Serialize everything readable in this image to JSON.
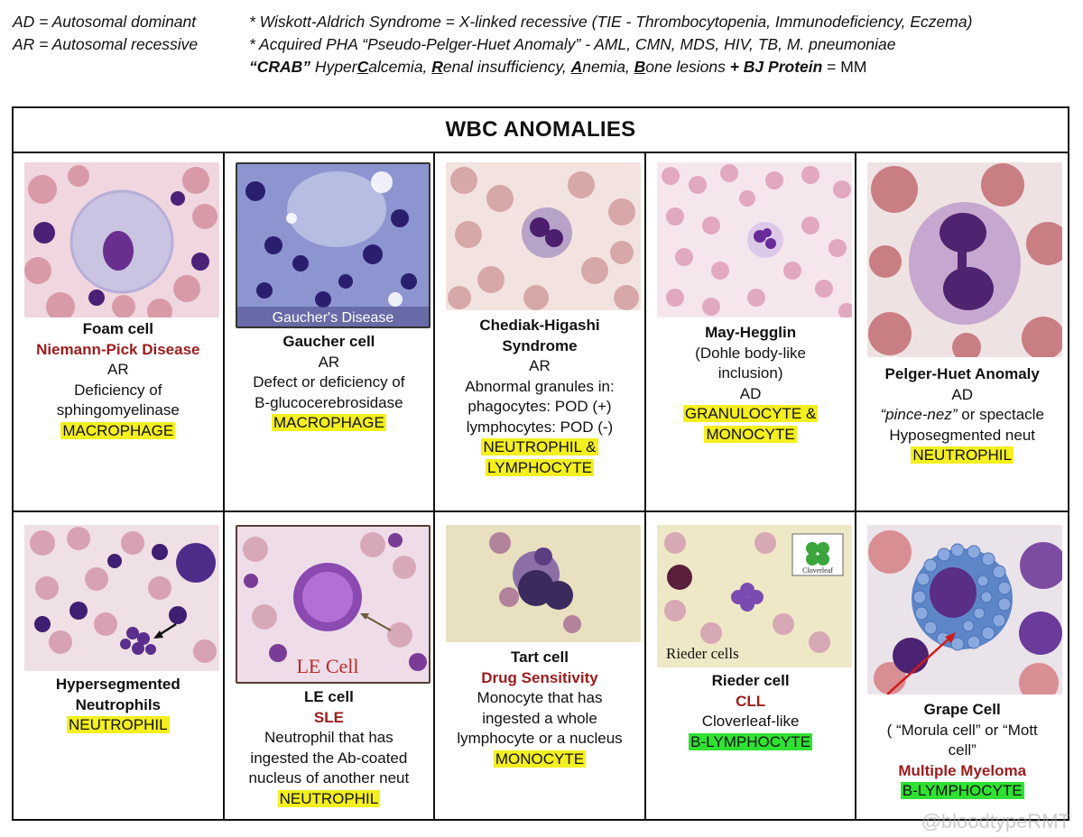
{
  "header": {
    "ad_def": "AD = Autosomal dominant",
    "ar_def": "AR = Autosomal recessive",
    "note1": "* Wiskott-Aldrich Syndrome = X-linked recessive (TIE - Thrombocytopenia, Immunodeficiency, Eczema)",
    "note2": "* Acquired PHA “Pseudo-Pelger-Huet Anomaly” - AML, CMN, MDS, HIV, TB, M. pneumoniae",
    "crab": {
      "label": "“CRAB”",
      "hyper": " Hyper",
      "c": "C",
      "alcemia": "alcemia, ",
      "r": "R",
      "enal": "enal insufficiency, ",
      "a": "A",
      "nemia": "nemia, ",
      "b": "B",
      "one": "one lesions ",
      "bj": "+ BJ Protein",
      "eq": " = MM"
    }
  },
  "title": "WBC ANOMALIES",
  "cells": {
    "foam": {
      "name": "Foam cell",
      "disease": "Niemann-Pick Disease",
      "inherit": "AR",
      "desc1": "Deficiency of",
      "desc2": "sphingomyelinase",
      "type": "MACROPHAGE"
    },
    "gaucher": {
      "caption": "Gaucher's Disease",
      "name": "Gaucher cell",
      "inherit": "AR",
      "desc1": "Defect or deficiency of",
      "desc2": "B-glucocerebrosidase",
      "type": "MACROPHAGE"
    },
    "chediak": {
      "name1": "Chediak-Higashi",
      "name2": "Syndrome",
      "inherit": "AR",
      "desc1": "Abnormal granules in:",
      "desc2": "phagocytes: POD (+)",
      "desc3": "lymphocytes: POD (-)",
      "type1": "NEUTROPHIL &",
      "type2": "LYMPHOCYTE"
    },
    "may": {
      "name": "May-Hegglin",
      "desc1": "(Dohle body-like",
      "desc2": "inclusion)",
      "inherit": "AD",
      "type1": "GRANULOCYTE &",
      "type2": "MONOCYTE"
    },
    "pelger": {
      "name": "Pelger-Huet Anomaly",
      "inherit": "AD",
      "desc1a": "“pince-nez”",
      "desc1b": " or spectacle",
      "desc2": "Hyposegmented neut",
      "type": "NEUTROPHIL"
    },
    "hyperseg": {
      "name1": "Hypersegmented",
      "name2": "Neutrophils",
      "type": "NEUTROPHIL"
    },
    "le": {
      "caption": "LE Cell",
      "name": "LE cell",
      "disease": "SLE",
      "desc1": "Neutrophil that has",
      "desc2": "ingested the Ab-coated",
      "desc3": "nucleus of another neut",
      "type": "NEUTROPHIL"
    },
    "tart": {
      "name": "Tart cell",
      "disease": "Drug Sensitivity",
      "desc1": "Monocyte that has",
      "desc2": "ingested a whole",
      "desc3": "lymphocyte or a nucleus",
      "type": "MONOCYTE"
    },
    "rieder": {
      "inset": "Cloverleaf",
      "caption": "Rieder cells",
      "name": "Rieder cell",
      "disease": "CLL",
      "desc1": "Cloverleaf-like",
      "type": "B-LYMPHOCYTE"
    },
    "grape": {
      "name": "Grape Cell",
      "desc1": "( “Morula cell” or “Mott",
      "desc2": "cell”",
      "disease": "Multiple Myeloma",
      "type": "B-LYMPHOCYTE"
    }
  },
  "watermark": "@bloodtypeRMT"
}
